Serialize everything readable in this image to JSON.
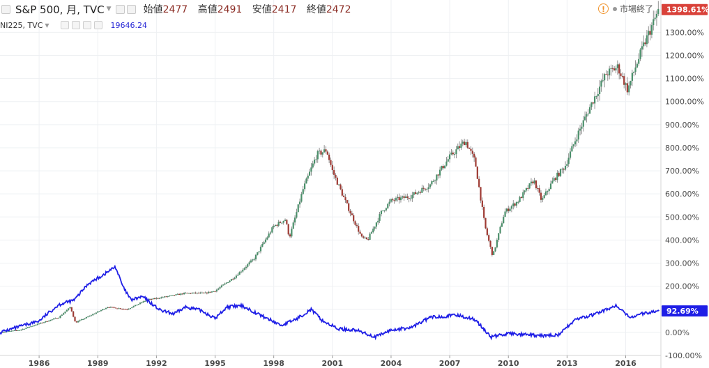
{
  "header": {
    "symbol": "S&P 500, 月, TVC",
    "open_label": "始値",
    "open_value": "2477",
    "high_label": "高値",
    "high_value": "2491",
    "low_label": "安値",
    "low_value": "2417",
    "close_label": "終値",
    "close_value": "2472"
  },
  "overlay": {
    "symbol": "NI225, TVC",
    "value": "19646.24"
  },
  "status": {
    "market": "市場終了"
  },
  "colors": {
    "up": "#4a8f6a",
    "down": "#9e3a33",
    "overlay": "#1f1fe6",
    "badge_main": "#d9423a",
    "badge_overlay": "#1f1fe6"
  },
  "chart_data": {
    "type": "line",
    "y_unit": "%",
    "ylim": [
      -100,
      1440
    ],
    "y_ticks": [
      "1300.00%",
      "1200.00%",
      "1100.00%",
      "1000.00%",
      "900.00%",
      "800.00%",
      "700.00%",
      "600.00%",
      "500.00%",
      "400.00%",
      "300.00%",
      "200.00%",
      "100.00%",
      "0.00%",
      "-100.00%"
    ],
    "x_ticks": [
      "1986",
      "1989",
      "1992",
      "1995",
      "1998",
      "2001",
      "2004",
      "2007",
      "2010",
      "2013",
      "2016"
    ],
    "xlim": [
      1984.0,
      2017.8
    ],
    "grid": true,
    "series": [
      {
        "name": "S&P 500",
        "style": "candlestick",
        "last_label": "1398.61%",
        "points": [
          [
            1984.0,
            0
          ],
          [
            1985.0,
            10
          ],
          [
            1986.0,
            38
          ],
          [
            1987.0,
            65
          ],
          [
            1987.6,
            110
          ],
          [
            1987.85,
            42
          ],
          [
            1988.5,
            68
          ],
          [
            1989.5,
            110
          ],
          [
            1990.5,
            100
          ],
          [
            1991.5,
            140
          ],
          [
            1992.5,
            155
          ],
          [
            1993.5,
            170
          ],
          [
            1994.5,
            170
          ],
          [
            1995.0,
            180
          ],
          [
            1996.0,
            240
          ],
          [
            1997.0,
            320
          ],
          [
            1998.0,
            460
          ],
          [
            1998.6,
            490
          ],
          [
            1998.8,
            410
          ],
          [
            1999.5,
            620
          ],
          [
            2000.2,
            770
          ],
          [
            2000.7,
            790
          ],
          [
            2001.0,
            700
          ],
          [
            2001.7,
            560
          ],
          [
            2002.5,
            410
          ],
          [
            2002.8,
            400
          ],
          [
            2003.5,
            520
          ],
          [
            2004.0,
            570
          ],
          [
            2005.0,
            590
          ],
          [
            2006.0,
            640
          ],
          [
            2007.0,
            760
          ],
          [
            2007.8,
            830
          ],
          [
            2008.3,
            740
          ],
          [
            2008.8,
            460
          ],
          [
            2009.2,
            330
          ],
          [
            2009.8,
            520
          ],
          [
            2010.5,
            570
          ],
          [
            2011.3,
            660
          ],
          [
            2011.7,
            570
          ],
          [
            2012.3,
            660
          ],
          [
            2012.9,
            720
          ],
          [
            2013.5,
            850
          ],
          [
            2014.3,
            1000
          ],
          [
            2015.0,
            1120
          ],
          [
            2015.6,
            1150
          ],
          [
            2016.1,
            1050
          ],
          [
            2016.5,
            1150
          ],
          [
            2017.0,
            1260
          ],
          [
            2017.7,
            1398.61
          ]
        ]
      },
      {
        "name": "NI225",
        "style": "line",
        "last_label": "92.69%",
        "points": [
          [
            1984.0,
            0
          ],
          [
            1985.0,
            25
          ],
          [
            1986.0,
            50
          ],
          [
            1987.0,
            120
          ],
          [
            1987.8,
            140
          ],
          [
            1988.5,
            210
          ],
          [
            1989.3,
            250
          ],
          [
            1989.9,
            285
          ],
          [
            1990.3,
            195
          ],
          [
            1990.7,
            140
          ],
          [
            1991.3,
            155
          ],
          [
            1992.2,
            95
          ],
          [
            1992.9,
            80
          ],
          [
            1993.5,
            110
          ],
          [
            1994.3,
            95
          ],
          [
            1995.0,
            60
          ],
          [
            1995.6,
            110
          ],
          [
            1996.4,
            115
          ],
          [
            1997.3,
            75
          ],
          [
            1998.4,
            30
          ],
          [
            1999.2,
            60
          ],
          [
            1999.9,
            100
          ],
          [
            2000.5,
            50
          ],
          [
            2001.3,
            15
          ],
          [
            2002.2,
            10
          ],
          [
            2003.2,
            -20
          ],
          [
            2004.0,
            10
          ],
          [
            2005.0,
            20
          ],
          [
            2006.0,
            65
          ],
          [
            2007.4,
            75
          ],
          [
            2008.3,
            55
          ],
          [
            2009.1,
            -20
          ],
          [
            2010.0,
            -5
          ],
          [
            2010.8,
            -10
          ],
          [
            2011.6,
            -15
          ],
          [
            2012.6,
            -10
          ],
          [
            2013.4,
            55
          ],
          [
            2014.3,
            75
          ],
          [
            2015.5,
            115
          ],
          [
            2016.2,
            65
          ],
          [
            2016.8,
            80
          ],
          [
            2017.7,
            92.69
          ]
        ]
      }
    ]
  }
}
